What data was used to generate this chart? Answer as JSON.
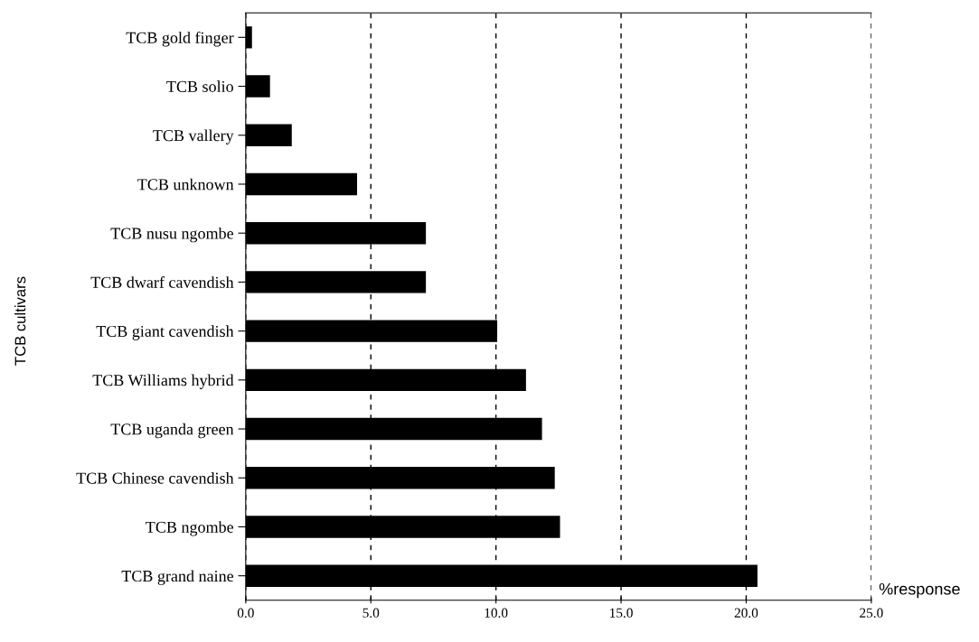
{
  "chart_data": {
    "type": "bar",
    "orientation": "horizontal",
    "xlabel": "%response",
    "ylabel": "TCB cultivars",
    "categories": [
      "TCB gold finger",
      "TCB solio",
      "TCB vallery",
      "TCB unknown",
      "TCB nusu ngombe",
      "TCB dwarf cavendish",
      "TCB giant cavendish",
      "TCB Williams hybrid",
      "TCB uganda green",
      "TCB Chinese cavendish",
      "TCB ngombe",
      "TCB grand naine"
    ],
    "values": [
      0.25,
      0.97,
      1.84,
      4.45,
      7.2,
      7.2,
      10.05,
      11.2,
      11.84,
      12.35,
      12.56,
      20.45
    ],
    "color": "#000000",
    "xlim": [
      0,
      25
    ],
    "xticks": [
      {
        "value": 0,
        "label": "0.0"
      },
      {
        "value": 5,
        "label": "5.0"
      },
      {
        "value": 10,
        "label": "10.0"
      },
      {
        "value": 15,
        "label": "15.0"
      },
      {
        "value": 20,
        "label": "20.0"
      },
      {
        "value": 25,
        "label": "25.0"
      }
    ],
    "grid": "x",
    "legend": false
  }
}
